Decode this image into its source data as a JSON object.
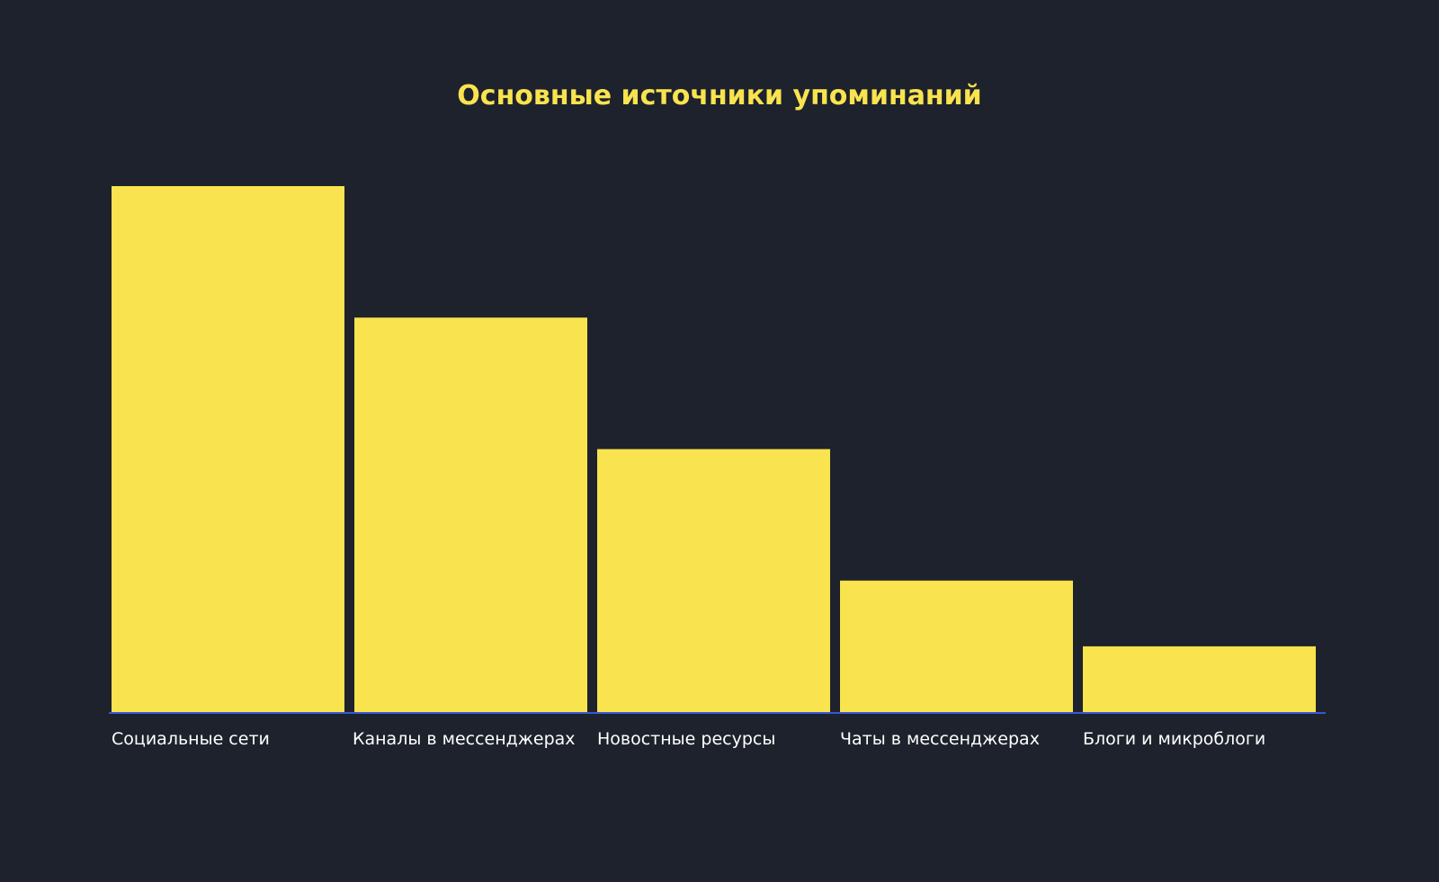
{
  "colors": {
    "background": "#1d222c",
    "bar": "#f9e34e",
    "title": "#f9e34e",
    "axis": "#3557d9",
    "tick_label": "#ffffff"
  },
  "chart_data": {
    "type": "bar",
    "title": "Основные источники упоминаний",
    "xlabel": "",
    "ylabel": "",
    "categories": [
      "Социальные сети",
      "Каналы в мессенджерах",
      "Новостные ресурсы",
      "Чаты в мессенджерах",
      "Блоги и микроблоги"
    ],
    "values": [
      8,
      6,
      4,
      2,
      1
    ],
    "ylim": [
      0,
      8
    ],
    "grid": false,
    "legend": "none"
  }
}
